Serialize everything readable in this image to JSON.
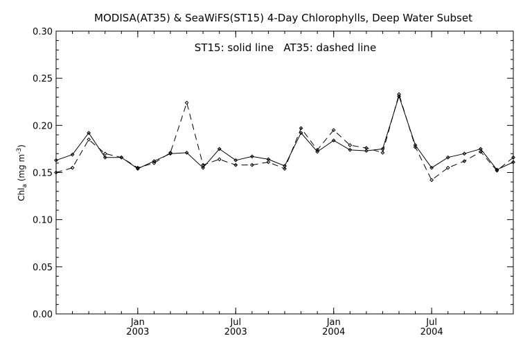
{
  "chart_data": {
    "type": "line",
    "title": "MODISA(AT35) & SeaWiFS(ST15) 4-Day Chlorophylls, Deep Water Subset",
    "annotation": "ST15: solid line   AT35: dashed line",
    "ylabel": {
      "main": "Chl",
      "sub": "a",
      "unit": " (mg m",
      "sup": "-3",
      "close": ")"
    },
    "ylim": [
      0,
      0.3
    ],
    "yticks": [
      "0.00",
      "0.05",
      "0.10",
      "0.15",
      "0.20",
      "0.25",
      "0.30"
    ],
    "xlim": [
      "2002-08",
      "2004-12"
    ],
    "xticks": [
      {
        "x": "2003-01",
        "month": "Jan",
        "year": "2003"
      },
      {
        "x": "2003-07",
        "month": "Jul",
        "year": "2003"
      },
      {
        "x": "2004-01",
        "month": "Jan",
        "year": "2004"
      },
      {
        "x": "2004-07",
        "month": "Jul",
        "year": "2004"
      }
    ],
    "legend": "top-center",
    "series": [
      {
        "name": "ST15",
        "style": "solid",
        "x": [
          "2002-08",
          "2002-09",
          "2002-10",
          "2002-11",
          "2002-12",
          "2003-01",
          "2003-02",
          "2003-03",
          "2003-04",
          "2003-05",
          "2003-06",
          "2003-07",
          "2003-08",
          "2003-09",
          "2003-10",
          "2003-11",
          "2003-12",
          "2004-01",
          "2004-02",
          "2004-03",
          "2004-04",
          "2004-05",
          "2004-06",
          "2004-07",
          "2004-08",
          "2004-09",
          "2004-10",
          "2004-11",
          "2004-12"
        ],
        "values": [
          0.163,
          0.169,
          0.192,
          0.166,
          0.166,
          0.154,
          0.162,
          0.17,
          0.171,
          0.155,
          0.175,
          0.163,
          0.167,
          0.164,
          0.157,
          0.192,
          0.172,
          0.184,
          0.174,
          0.173,
          0.175,
          0.231,
          0.179,
          0.155,
          0.166,
          0.17,
          0.175,
          0.153,
          0.161
        ]
      },
      {
        "name": "AT35",
        "style": "dashed",
        "x": [
          "2002-08",
          "2002-09",
          "2002-10",
          "2002-11",
          "2002-12",
          "2003-01",
          "2003-02",
          "2003-03",
          "2003-04",
          "2003-05",
          "2003-06",
          "2003-07",
          "2003-08",
          "2003-09",
          "2003-10",
          "2003-11",
          "2003-12",
          "2004-01",
          "2004-02",
          "2004-03",
          "2004-04",
          "2004-05",
          "2004-06",
          "2004-07",
          "2004-08",
          "2004-09",
          "2004-10",
          "2004-11",
          "2004-12"
        ],
        "values": [
          0.15,
          0.155,
          0.185,
          0.17,
          0.166,
          0.155,
          0.16,
          0.171,
          0.224,
          0.158,
          0.164,
          0.158,
          0.158,
          0.161,
          0.154,
          0.197,
          0.174,
          0.195,
          0.179,
          0.176,
          0.171,
          0.233,
          0.177,
          0.142,
          0.155,
          0.162,
          0.172,
          0.152,
          0.166
        ]
      }
    ]
  }
}
